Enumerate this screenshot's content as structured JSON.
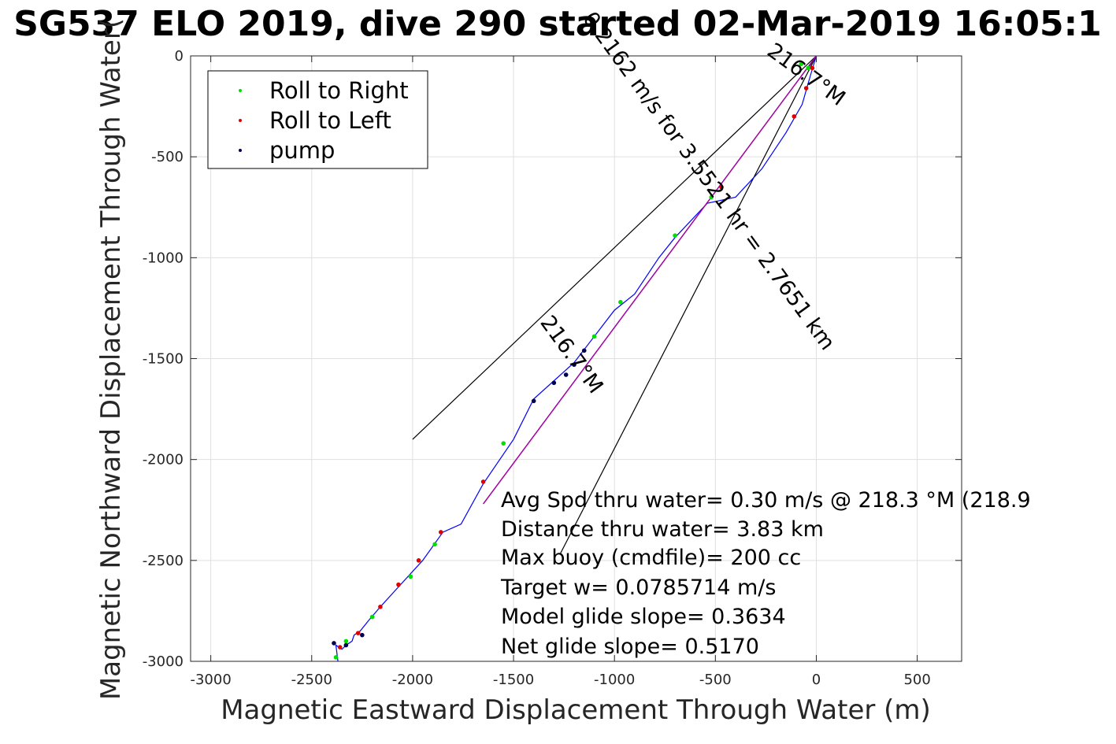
{
  "chart_data": {
    "type": "scatter",
    "title": "SG537 ELO 2019, dive 290 started 02-Mar-2019 16:05:1",
    "xlabel": "Magnetic Eastward Displacement Through Water (m)",
    "ylabel": "Magnetic Northward Displacement Through Water(",
    "xlim": [
      -3100,
      720
    ],
    "ylim": [
      -3000,
      0
    ],
    "xticks": [
      -3000,
      -2500,
      -2000,
      -1500,
      -1000,
      -500,
      0,
      500
    ],
    "xtick_labels": [
      "-3000",
      "-2500",
      "-2000",
      "-1500",
      "-1000",
      "-500",
      "0",
      "500"
    ],
    "yticks": [
      0,
      -500,
      -1000,
      -1500,
      -2000,
      -2500,
      -3000
    ],
    "ytick_labels": [
      "0",
      "-500",
      "-1000",
      "-1500",
      "-2000",
      "-2500",
      "-3000"
    ],
    "grid": true,
    "legend_position": "top-left",
    "legend": [
      {
        "name": "Roll to Right",
        "color": "#00e000"
      },
      {
        "name": "Roll to Left",
        "color": "#e00000"
      },
      {
        "name": "pump",
        "color": "#000050"
      }
    ],
    "track": {
      "color": "#0000ff",
      "points": [
        [
          0,
          0
        ],
        [
          -30,
          -100
        ],
        [
          -70,
          -240
        ],
        [
          -150,
          -380
        ],
        [
          -270,
          -560
        ],
        [
          -400,
          -700
        ],
        [
          -540,
          -730
        ],
        [
          -700,
          -900
        ],
        [
          -780,
          -1000
        ],
        [
          -900,
          -1180
        ],
        [
          -1000,
          -1260
        ],
        [
          -1100,
          -1390
        ],
        [
          -1200,
          -1520
        ],
        [
          -1400,
          -1700
        ],
        [
          -1500,
          -1900
        ],
        [
          -1650,
          -2120
        ],
        [
          -1760,
          -2320
        ],
        [
          -1850,
          -2360
        ],
        [
          -1950,
          -2500
        ],
        [
          -2060,
          -2620
        ],
        [
          -2160,
          -2730
        ],
        [
          -2220,
          -2800
        ],
        [
          -2260,
          -2850
        ],
        [
          -2290,
          -2870
        ],
        [
          -2300,
          -2900
        ],
        [
          -2330,
          -2920
        ],
        [
          -2350,
          -2940
        ],
        [
          -2380,
          -2920
        ],
        [
          -2370,
          -3000
        ]
      ]
    },
    "roll_right_points": [
      [
        -75,
        -40
      ],
      [
        -40,
        -60
      ],
      [
        -520,
        -700
      ],
      [
        -700,
        -890
      ],
      [
        -970,
        -1220
      ],
      [
        -1100,
        -1390
      ],
      [
        -1550,
        -1920
      ],
      [
        -1890,
        -2420
      ],
      [
        -2010,
        -2580
      ],
      [
        -2200,
        -2780
      ],
      [
        -2330,
        -2900
      ],
      [
        -2380,
        -2980
      ]
    ],
    "roll_left_points": [
      [
        -20,
        -60
      ],
      [
        -50,
        -160
      ],
      [
        -110,
        -300
      ],
      [
        -470,
        -650
      ],
      [
        -1650,
        -2110
      ],
      [
        -1860,
        -2360
      ],
      [
        -1970,
        -2500
      ],
      [
        -2070,
        -2620
      ],
      [
        -2160,
        -2730
      ],
      [
        -2270,
        -2860
      ],
      [
        -2360,
        -2930
      ]
    ],
    "pump_points": [
      [
        -1200,
        -1530
      ],
      [
        -1240,
        -1580
      ],
      [
        -1300,
        -1620
      ],
      [
        -1150,
        -1460
      ],
      [
        -1400,
        -1710
      ],
      [
        -2330,
        -2920
      ],
      [
        -2390,
        -2910
      ],
      [
        -2250,
        -2870
      ]
    ],
    "net_line": {
      "color": "#a000a0",
      "points": [
        [
          0,
          0
        ],
        [
          -1650,
          -2220
        ]
      ]
    },
    "wedge_lines": {
      "color": "#000000",
      "segments": [
        [
          [
            0,
            0
          ],
          [
            -2000,
            -1900
          ]
        ],
        [
          [
            0,
            0
          ],
          [
            -1270,
            -2470
          ]
        ],
        [
          [
            -40,
            -60
          ],
          [
            0,
            0
          ]
        ]
      ]
    },
    "rotated_labels": [
      {
        "text": "216.7°M",
        "x": -70,
        "y": -120,
        "angle": 36
      },
      {
        "text": "0.2162 m/s for 3.5521 hr = 2.7651 km",
        "x": -560,
        "y": -640,
        "angle": 54
      },
      {
        "text": "216.7°M",
        "x": -1240,
        "y": -1500,
        "angle": 54
      }
    ],
    "annotations": [
      "Avg Spd thru water=  0.30 m/s @ 218.3 °M (218.9",
      "Distance thru water=  3.83 km",
      "Max buoy (cmdfile)= 200 cc",
      "Target w= 0.0785714 m/s",
      "Model glide slope= 0.3634",
      "Net glide slope= 0.5170"
    ]
  }
}
